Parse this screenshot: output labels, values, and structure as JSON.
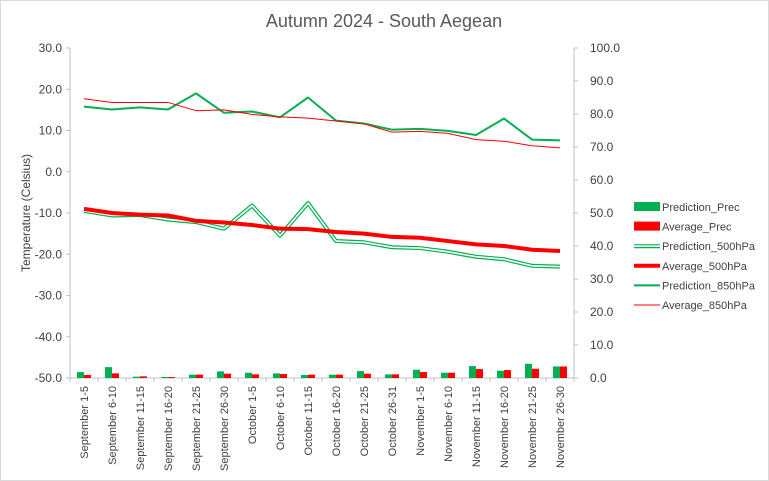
{
  "chart_data": {
    "type": "line",
    "title": "Autumn 2024 - South Aegean",
    "ylabel": "Temperature (Celsius)",
    "ylim": [
      -50,
      30
    ],
    "y_ticks": [
      "30.0",
      "20.0",
      "10.0",
      "0.0",
      "-10.0",
      "-20.0",
      "-30.0",
      "-40.0",
      "-50.0"
    ],
    "y2lim": [
      0,
      100
    ],
    "y2_ticks": [
      "100.0",
      "90.0",
      "80.0",
      "70.0",
      "60.0",
      "50.0",
      "40.0",
      "30.0",
      "20.0",
      "10.0",
      "0.0"
    ],
    "categories": [
      "September 1-5",
      "September 6-10",
      "September 11-15",
      "September 16-20",
      "September 21-25",
      "September 26-30",
      "October 1-5",
      "October 6-10",
      "October 11-15",
      "October 16-20",
      "October 21-25",
      "October 26-31",
      "November 1-5",
      "November 6-10",
      "November 11-15",
      "November 16-20",
      "November 21-25",
      "November 26-30"
    ],
    "legend_position": "right",
    "series": [
      {
        "name": "Prediction_Prec",
        "kind": "bar",
        "axis": "right",
        "color": "#00b050",
        "values": [
          1.8,
          3.3,
          0.4,
          0.3,
          1.0,
          2.0,
          1.6,
          1.4,
          0.9,
          1.0,
          2.1,
          1.1,
          2.5,
          1.6,
          3.6,
          2.2,
          4.3,
          3.5
        ]
      },
      {
        "name": "Average_Prec",
        "kind": "bar",
        "axis": "right",
        "color": "#ff0000",
        "values": [
          0.9,
          1.4,
          0.5,
          0.3,
          1.0,
          1.3,
          1.1,
          1.2,
          1.0,
          1.0,
          1.3,
          1.1,
          1.8,
          1.6,
          2.7,
          2.4,
          2.8,
          3.5
        ]
      },
      {
        "name": "Prediction_500hPa",
        "kind": "line-double",
        "axis": "left",
        "color": "#00b050",
        "values": [
          -9.5,
          -10.6,
          -10.5,
          -11.6,
          -12.2,
          -13.8,
          -8.2,
          -15.5,
          -7.6,
          -16.8,
          -17.1,
          -18.3,
          -18.5,
          -19.4,
          -20.6,
          -21.2,
          -22.8,
          -23.0
        ]
      },
      {
        "name": "Average_500hPa",
        "kind": "line",
        "axis": "left",
        "color": "#ff0000",
        "width": 4,
        "values": [
          -9.0,
          -10.0,
          -10.4,
          -10.6,
          -11.9,
          -12.3,
          -12.9,
          -13.8,
          -13.9,
          -14.6,
          -15.0,
          -15.8,
          -16.0,
          -16.8,
          -17.6,
          -18.0,
          -18.9,
          -19.2
        ]
      },
      {
        "name": "Prediction_850hPa",
        "kind": "line",
        "axis": "left",
        "color": "#00b050",
        "width": 2,
        "values": [
          15.8,
          15.1,
          15.6,
          15.1,
          19.0,
          14.3,
          14.6,
          13.2,
          18.0,
          12.4,
          11.7,
          10.2,
          10.4,
          9.9,
          8.9,
          12.9,
          7.8,
          7.6
        ]
      },
      {
        "name": "Average_850hPa",
        "kind": "line",
        "axis": "left",
        "color": "#ff0000",
        "width": 1,
        "values": [
          17.7,
          16.8,
          16.8,
          16.8,
          14.8,
          15.0,
          13.9,
          13.3,
          13.0,
          12.3,
          11.6,
          9.6,
          9.8,
          9.3,
          7.8,
          7.4,
          6.3,
          5.8
        ]
      }
    ]
  }
}
